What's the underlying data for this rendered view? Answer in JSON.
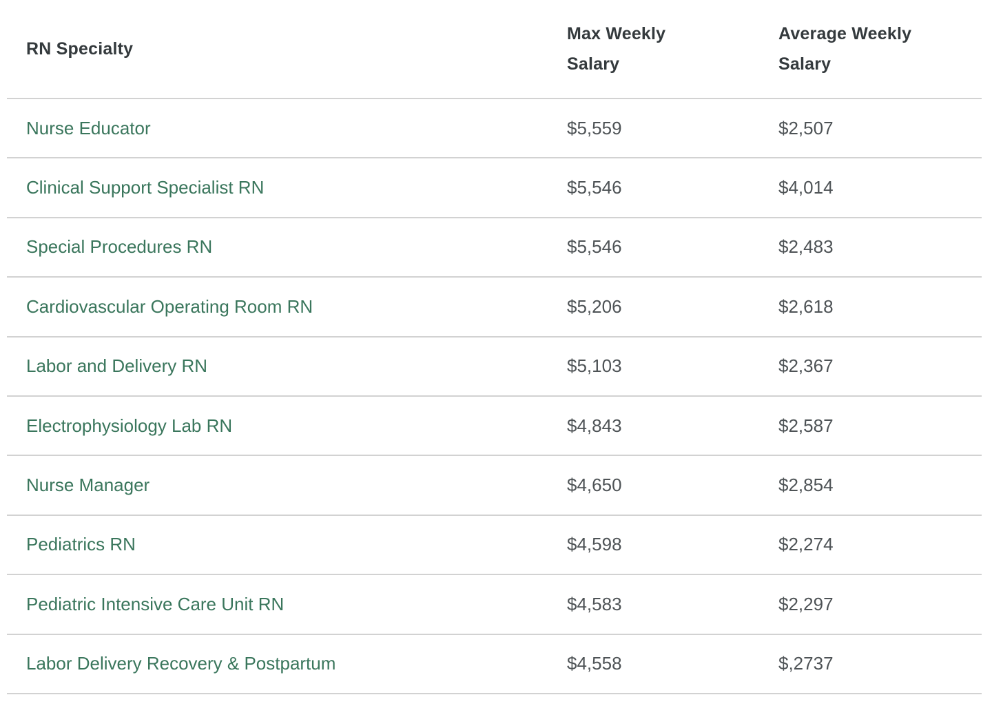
{
  "colors": {
    "specialty_link": "#3a765c",
    "header_text": "#343a3d",
    "value_text": "#4e5356",
    "divider": "#d2d2d2",
    "background": "#ffffff"
  },
  "chart_data": {
    "type": "table",
    "columns": [
      {
        "label": "RN Specialty"
      },
      {
        "label": "Max Weekly Salary"
      },
      {
        "label": "Average Weekly Salary"
      }
    ],
    "rows": [
      {
        "specialty": "Nurse Educator",
        "max_weekly": "$5,559",
        "avg_weekly": "$2,507"
      },
      {
        "specialty": "Clinical Support Specialist RN",
        "max_weekly": "$5,546",
        "avg_weekly": "$4,014"
      },
      {
        "specialty": "Special Procedures RN",
        "max_weekly": "$5,546",
        "avg_weekly": "$2,483"
      },
      {
        "specialty": "Cardiovascular Operating Room RN",
        "max_weekly": "$5,206",
        "avg_weekly": "$2,618"
      },
      {
        "specialty": "Labor and Delivery RN",
        "max_weekly": "$5,103",
        "avg_weekly": "$2,367"
      },
      {
        "specialty": "Electrophysiology Lab RN",
        "max_weekly": "$4,843",
        "avg_weekly": "$2,587"
      },
      {
        "specialty": "Nurse Manager",
        "max_weekly": "$4,650",
        "avg_weekly": "$2,854"
      },
      {
        "specialty": "Pediatrics RN",
        "max_weekly": "$4,598",
        "avg_weekly": "$2,274"
      },
      {
        "specialty": "Pediatric Intensive Care Unit RN",
        "max_weekly": "$4,583",
        "avg_weekly": "$2,297"
      },
      {
        "specialty": "Labor Delivery Recovery & Postpartum",
        "max_weekly": "$4,558",
        "avg_weekly": "$,2737"
      }
    ]
  }
}
